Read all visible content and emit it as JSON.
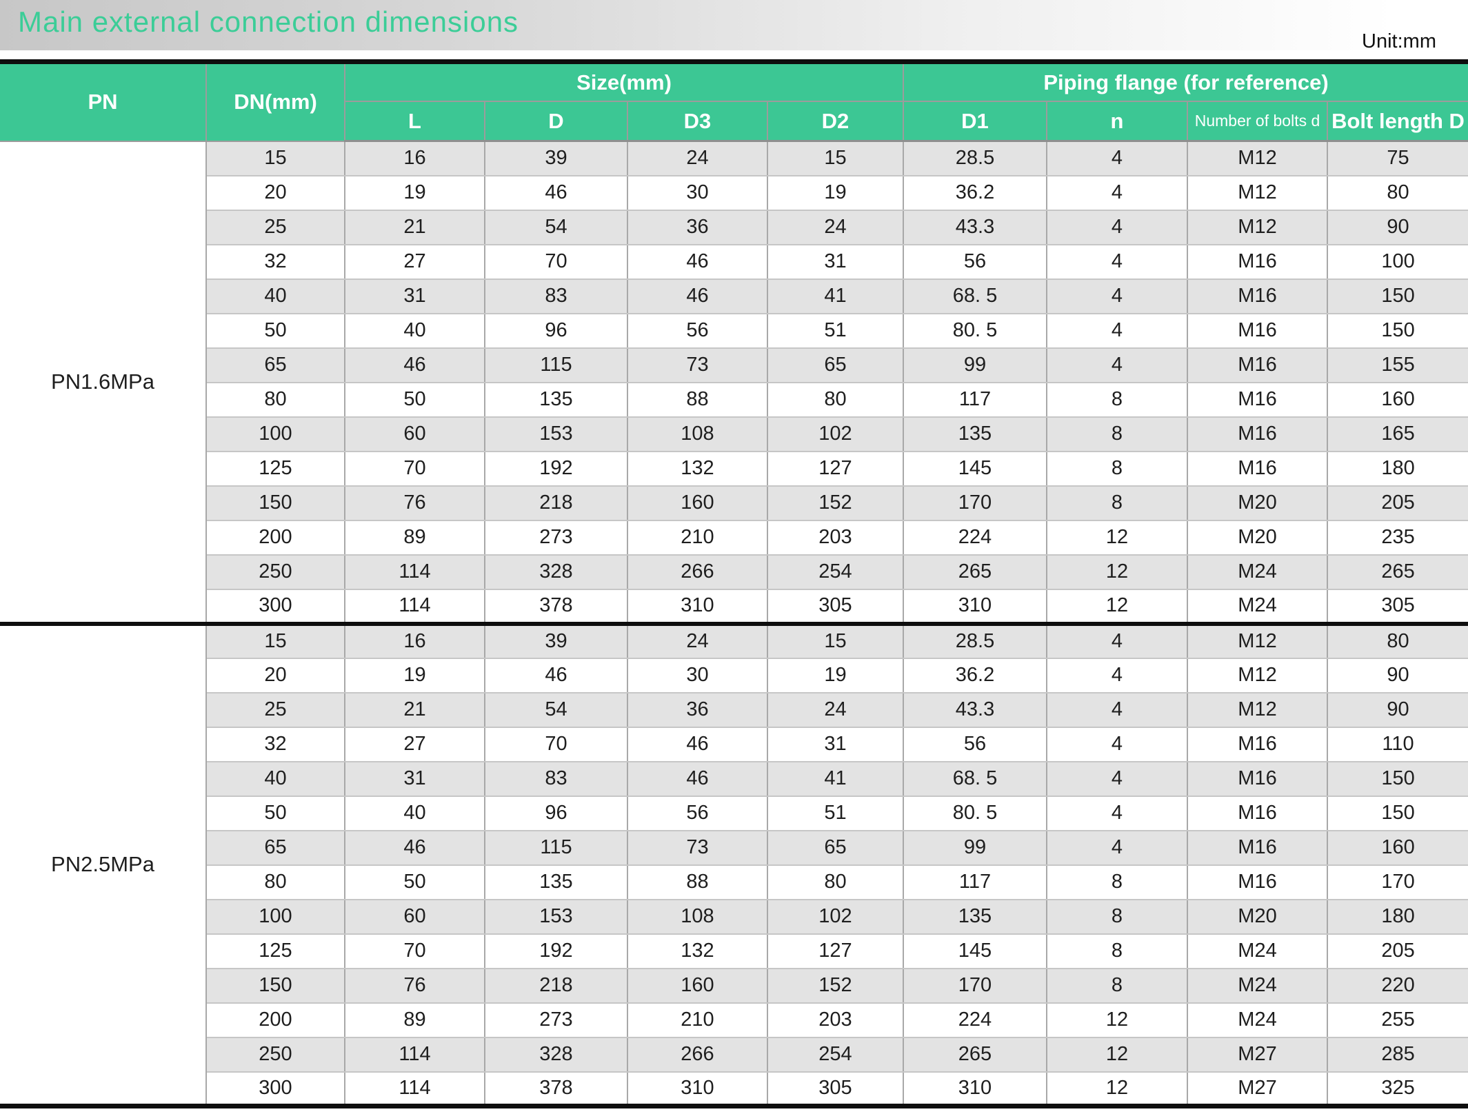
{
  "title": "Main external connection dimensions",
  "unit_label": "Unit:mm",
  "colors": {
    "header_green": "#3cc794",
    "title_green": "#3bcd97",
    "stripe_gray": "#e3e3e3",
    "border_black": "#0e0e0e",
    "grid_gray": "#a8a8a8"
  },
  "table": {
    "header": {
      "pn": "PN",
      "dn": "DN(mm)",
      "size_group": "Size(mm)",
      "flange_group": "Piping flange (for reference)",
      "sub": [
        "L",
        "D",
        "D3",
        "D2",
        "D1",
        "n",
        "Number of bolts d",
        "Bolt length D"
      ]
    },
    "column_keys": [
      "dn",
      "l",
      "d",
      "d3",
      "d2",
      "d1",
      "n",
      "bolts-d",
      "bolt-length-d"
    ],
    "groups": [
      {
        "pn": "PN1.6MPa",
        "rows": [
          [
            "15",
            "16",
            "39",
            "24",
            "15",
            "28.5",
            "4",
            "M12",
            "75"
          ],
          [
            "20",
            "19",
            "46",
            "30",
            "19",
            "36.2",
            "4",
            "M12",
            "80"
          ],
          [
            "25",
            "21",
            "54",
            "36",
            "24",
            "43.3",
            "4",
            "M12",
            "90"
          ],
          [
            "32",
            "27",
            "70",
            "46",
            "31",
            "56",
            "4",
            "M16",
            "100"
          ],
          [
            "40",
            "31",
            "83",
            "46",
            "41",
            "68. 5",
            "4",
            "M16",
            "150"
          ],
          [
            "50",
            "40",
            "96",
            "56",
            "51",
            "80. 5",
            "4",
            "M16",
            "150"
          ],
          [
            "65",
            "46",
            "115",
            "73",
            "65",
            "99",
            "4",
            "M16",
            "155"
          ],
          [
            "80",
            "50",
            "135",
            "88",
            "80",
            "117",
            "8",
            "M16",
            "160"
          ],
          [
            "100",
            "60",
            "153",
            "108",
            "102",
            "135",
            "8",
            "M16",
            "165"
          ],
          [
            "125",
            "70",
            "192",
            "132",
            "127",
            "145",
            "8",
            "M16",
            "180"
          ],
          [
            "150",
            "76",
            "218",
            "160",
            "152",
            "170",
            "8",
            "M20",
            "205"
          ],
          [
            "200",
            "89",
            "273",
            "210",
            "203",
            "224",
            "12",
            "M20",
            "235"
          ],
          [
            "250",
            "114",
            "328",
            "266",
            "254",
            "265",
            "12",
            "M24",
            "265"
          ],
          [
            "300",
            "114",
            "378",
            "310",
            "305",
            "310",
            "12",
            "M24",
            "305"
          ]
        ]
      },
      {
        "pn": "PN2.5MPa",
        "rows": [
          [
            "15",
            "16",
            "39",
            "24",
            "15",
            "28.5",
            "4",
            "M12",
            "80"
          ],
          [
            "20",
            "19",
            "46",
            "30",
            "19",
            "36.2",
            "4",
            "M12",
            "90"
          ],
          [
            "25",
            "21",
            "54",
            "36",
            "24",
            "43.3",
            "4",
            "M12",
            "90"
          ],
          [
            "32",
            "27",
            "70",
            "46",
            "31",
            "56",
            "4",
            "M16",
            "110"
          ],
          [
            "40",
            "31",
            "83",
            "46",
            "41",
            "68. 5",
            "4",
            "M16",
            "150"
          ],
          [
            "50",
            "40",
            "96",
            "56",
            "51",
            "80. 5",
            "4",
            "M16",
            "150"
          ],
          [
            "65",
            "46",
            "115",
            "73",
            "65",
            "99",
            "4",
            "M16",
            "160"
          ],
          [
            "80",
            "50",
            "135",
            "88",
            "80",
            "117",
            "8",
            "M16",
            "170"
          ],
          [
            "100",
            "60",
            "153",
            "108",
            "102",
            "135",
            "8",
            "M20",
            "180"
          ],
          [
            "125",
            "70",
            "192",
            "132",
            "127",
            "145",
            "8",
            "M24",
            "205"
          ],
          [
            "150",
            "76",
            "218",
            "160",
            "152",
            "170",
            "8",
            "M24",
            "220"
          ],
          [
            "200",
            "89",
            "273",
            "210",
            "203",
            "224",
            "12",
            "M24",
            "255"
          ],
          [
            "250",
            "114",
            "328",
            "266",
            "254",
            "265",
            "12",
            "M27",
            "285"
          ],
          [
            "300",
            "114",
            "378",
            "310",
            "305",
            "310",
            "12",
            "M27",
            "325"
          ]
        ]
      }
    ]
  }
}
